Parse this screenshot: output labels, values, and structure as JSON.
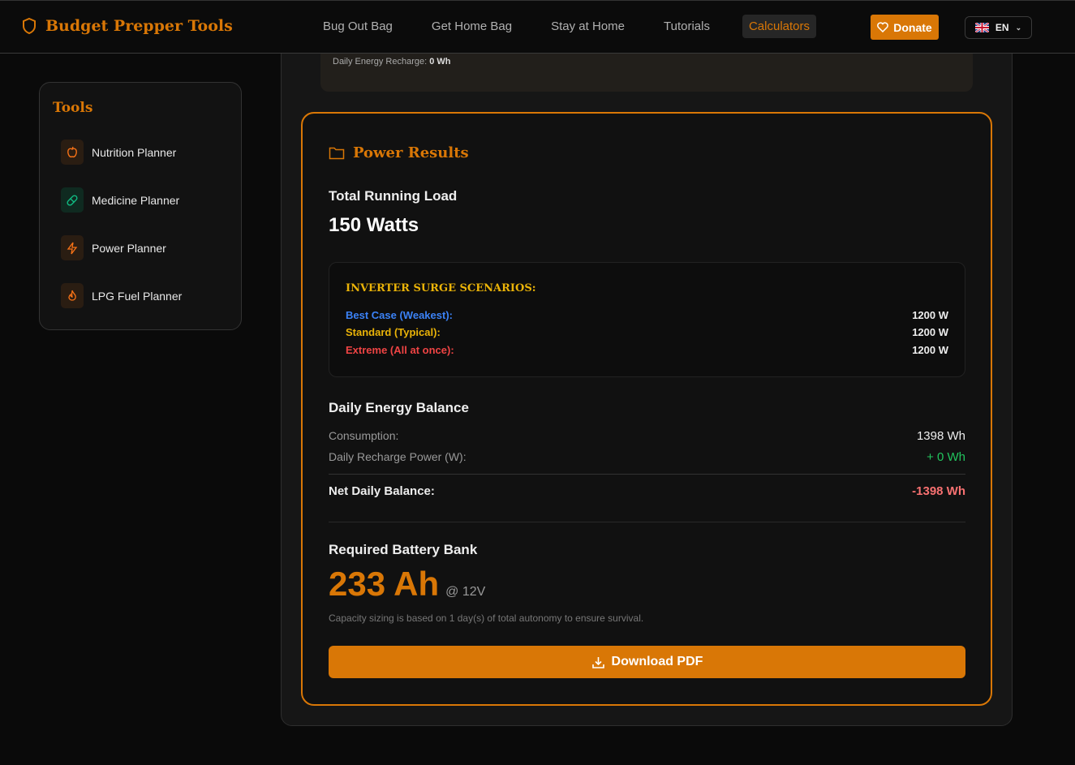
{
  "header": {
    "brand": "Budget Prepper Tools",
    "nav": [
      "Bug Out Bag",
      "Get Home Bag",
      "Stay at Home",
      "Tutorials",
      "Calculators"
    ],
    "active": "Calculators",
    "donate": "Donate",
    "lang": "EN"
  },
  "sidebar": {
    "title": "Tools",
    "items": [
      {
        "label": "Nutrition Planner",
        "icon": "apple-icon"
      },
      {
        "label": "Medicine Planner",
        "icon": "pill-icon"
      },
      {
        "label": "Power Planner",
        "icon": "zap-icon"
      },
      {
        "label": "LPG Fuel Planner",
        "icon": "flame-icon"
      }
    ]
  },
  "upper": {
    "recharge_label": "Daily Energy Recharge:",
    "recharge_value": "0 Wh"
  },
  "results": {
    "title": "Power Results",
    "load_label": "Total Running Load",
    "load_value": "150 Watts",
    "surge": {
      "title": "INVERTER SURGE SCENARIOS:",
      "rows": [
        {
          "label": "Best Case (Weakest):",
          "value": "1200 W",
          "color": "#3b82f6"
        },
        {
          "label": "Standard (Typical):",
          "value": "1200 W",
          "color": "#eab308"
        },
        {
          "label": "Extreme (All at once):",
          "value": "1200 W",
          "color": "#ef4444"
        }
      ]
    },
    "balance": {
      "title": "Daily Energy Balance",
      "consumption_label": "Consumption:",
      "consumption_value": "1398 Wh",
      "recharge_label": "Daily Recharge Power (W):",
      "recharge_value": "+ 0 Wh",
      "net_label": "Net Daily Balance:",
      "net_value": "-1398 Wh"
    },
    "battery": {
      "title": "Required Battery Bank",
      "value": "233 Ah",
      "voltage": "@ 12V",
      "note": "Capacity sizing is based on 1 day(s) of total autonomy to ensure survival."
    },
    "download": "Download PDF"
  },
  "colors": {
    "accent": "#d97706",
    "positive": "#22c55e",
    "negative": "#f87171"
  }
}
